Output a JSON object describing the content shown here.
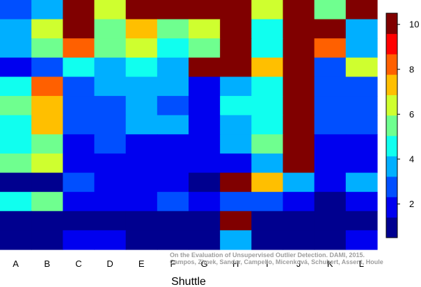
{
  "chart_data": {
    "type": "heatmap",
    "xlabel": "Shuttle",
    "columns": [
      "A",
      "B",
      "C",
      "D",
      "E",
      "F",
      "G",
      "H",
      "I",
      "J",
      "K",
      "L"
    ],
    "colorbar": {
      "min": 0.5,
      "max": 10.5,
      "ticks": [
        2,
        4,
        6,
        8,
        10
      ]
    },
    "colormap": [
      "#00008f",
      "#0000ef",
      "#004fff",
      "#00afff",
      "#10ffef",
      "#6fff8f",
      "#cfff2f",
      "#ffbf00",
      "#ff6000",
      "#ff0000",
      "#800000"
    ],
    "grid": false,
    "legend_position": "right",
    "values": [
      [
        3,
        4,
        11,
        7,
        11,
        11,
        11,
        11,
        7,
        11,
        6,
        11
      ],
      [
        4,
        7,
        11,
        6,
        8,
        6,
        7,
        11,
        5,
        11,
        11,
        4
      ],
      [
        4,
        6,
        9,
        6,
        7,
        5,
        6,
        11,
        5,
        11,
        9,
        4
      ],
      [
        2,
        3,
        5,
        4,
        5,
        4,
        11,
        11,
        8,
        11,
        3,
        7
      ],
      [
        5,
        9,
        3,
        4,
        4,
        4,
        2,
        4,
        5,
        11,
        3,
        3
      ],
      [
        6,
        8,
        3,
        3,
        4,
        3,
        2,
        5,
        5,
        11,
        3,
        3
      ],
      [
        5,
        8,
        3,
        3,
        4,
        4,
        2,
        4,
        5,
        11,
        3,
        3
      ],
      [
        5,
        6,
        2,
        3,
        2,
        2,
        2,
        4,
        6,
        11,
        2,
        2
      ],
      [
        6,
        7,
        2,
        2,
        2,
        2,
        2,
        2,
        4,
        11,
        2,
        2
      ],
      [
        1,
        1,
        3,
        2,
        2,
        2,
        1,
        11,
        8,
        4,
        2,
        4
      ],
      [
        5,
        6,
        2,
        2,
        2,
        3,
        2,
        3,
        3,
        2,
        1,
        2
      ],
      [
        1,
        1,
        1,
        1,
        1,
        1,
        1,
        11,
        1,
        1,
        1,
        1
      ],
      [
        1,
        1,
        2,
        2,
        1,
        1,
        1,
        4,
        1,
        1,
        1,
        2
      ]
    ]
  },
  "watermark": {
    "line1": "On the Evaluation of Unsupervised Outlier Detection. DAMI, 2015.",
    "line2": "Campos, Zimek, Sander, Campello, Micenková, Schubert, Assent, Houle"
  }
}
